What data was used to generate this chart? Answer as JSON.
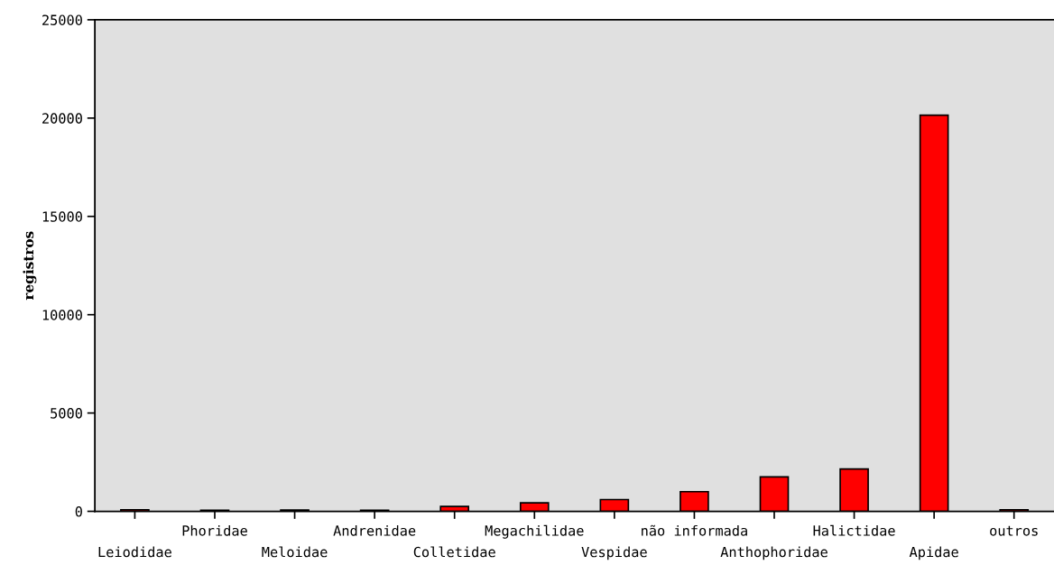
{
  "chart_data": {
    "type": "bar",
    "ylabel": "registros",
    "categories": [
      "Leiodidae",
      "Phoridae",
      "Meloidae",
      "Andrenidae",
      "Colletidae",
      "Megachilidae",
      "Vespidae",
      "não informada",
      "Anthophoridae",
      "Halictidae",
      "Apidae",
      "outros"
    ],
    "values": [
      80,
      60,
      70,
      60,
      250,
      430,
      600,
      1000,
      1750,
      2150,
      20150,
      80
    ],
    "color": "#ff0000",
    "ylim": [
      0,
      25000
    ],
    "yticks": [
      0,
      5000,
      10000,
      15000,
      20000,
      25000
    ],
    "grid": false,
    "legend": false
  }
}
